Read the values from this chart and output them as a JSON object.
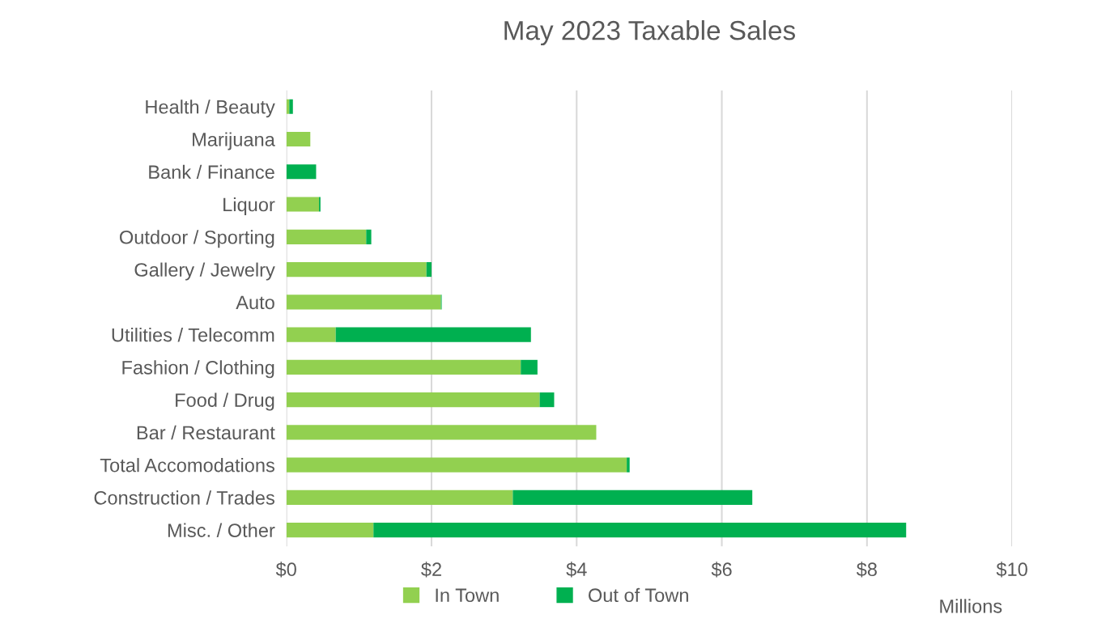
{
  "chart_data": {
    "type": "bar",
    "orientation": "horizontal",
    "stacked": true,
    "title": "May 2023 Taxable Sales",
    "categories": [
      "Health / Beauty",
      "Marijuana",
      "Bank / Finance",
      "Liquor",
      "Outdoor / Sporting",
      "Gallery / Jewelry",
      "Auto",
      "Utilities / Telecomm",
      "Fashion / Clothing",
      "Food / Drug",
      "Bar / Restaurant",
      "Total Accomodations",
      "Construction / Trades",
      "Misc. / Other"
    ],
    "series": [
      {
        "name": "In Town",
        "color": "#92d050",
        "values": [
          0.04,
          0.33,
          0,
          0.45,
          1.1,
          1.93,
          2.13,
          0.68,
          3.23,
          3.49,
          4.27,
          4.69,
          3.12,
          1.2
        ]
      },
      {
        "name": "Out of Town",
        "color": "#00b050",
        "values": [
          0.05,
          0,
          0.41,
          0.02,
          0.07,
          0.07,
          0.01,
          2.69,
          0.23,
          0.2,
          0,
          0.04,
          3.3,
          7.34
        ]
      }
    ],
    "xlim": [
      0,
      10
    ],
    "xticks": [
      {
        "value": 0,
        "label": "$0"
      },
      {
        "value": 2,
        "label": "$2"
      },
      {
        "value": 4,
        "label": "$4"
      },
      {
        "value": 6,
        "label": "$6"
      },
      {
        "value": 8,
        "label": "$8"
      },
      {
        "value": 10,
        "label": "$10"
      }
    ],
    "grid": "x",
    "legend": "bottom",
    "annotations": [
      "Millions"
    ]
  }
}
